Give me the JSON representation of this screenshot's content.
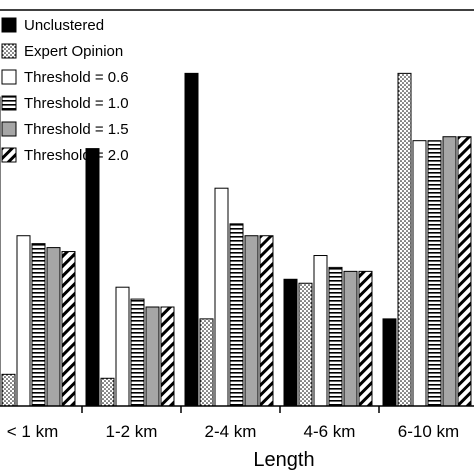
{
  "chart_data": {
    "type": "bar",
    "title": "",
    "xlabel": "Length",
    "ylabel": "",
    "categories": [
      "< 1 km",
      "1-2 km",
      "2-4 km",
      "4-6 km",
      "6-10 km"
    ],
    "ylim": [
      0,
      100
    ],
    "grid": false,
    "legend_position": "top-left",
    "series": [
      {
        "name": "Unclustered",
        "pattern": "solid-black",
        "values": [
          78,
          65,
          84,
          32,
          22
        ]
      },
      {
        "name": "Expert Opinion",
        "pattern": "dots",
        "values": [
          8,
          7,
          22,
          31,
          84
        ]
      },
      {
        "name": "Threshold = 0.6",
        "pattern": "white",
        "values": [
          43,
          30,
          55,
          38,
          67
        ]
      },
      {
        "name": "Threshold = 1.0",
        "pattern": "horizontal-lines",
        "values": [
          41,
          27,
          46,
          35,
          67
        ]
      },
      {
        "name": "Threshold = 1.5",
        "pattern": "gray",
        "values": [
          40,
          25,
          43,
          34,
          68
        ]
      },
      {
        "name": "Threshold = 2.0",
        "pattern": "diagonal-lines",
        "values": [
          39,
          25,
          43,
          34,
          68
        ]
      }
    ]
  }
}
